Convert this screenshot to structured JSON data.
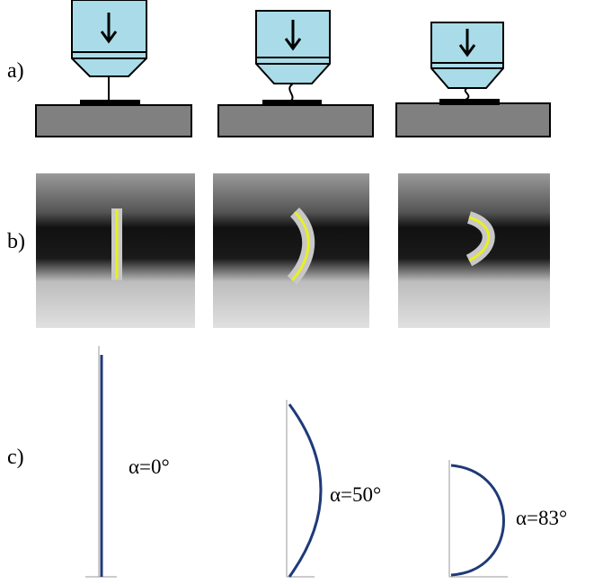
{
  "panels": [
    {
      "label": "a)"
    },
    {
      "label": "b)"
    },
    {
      "label": "c)"
    }
  ],
  "angles": [
    "α=0°",
    "α=50°",
    "α=83°"
  ]
}
